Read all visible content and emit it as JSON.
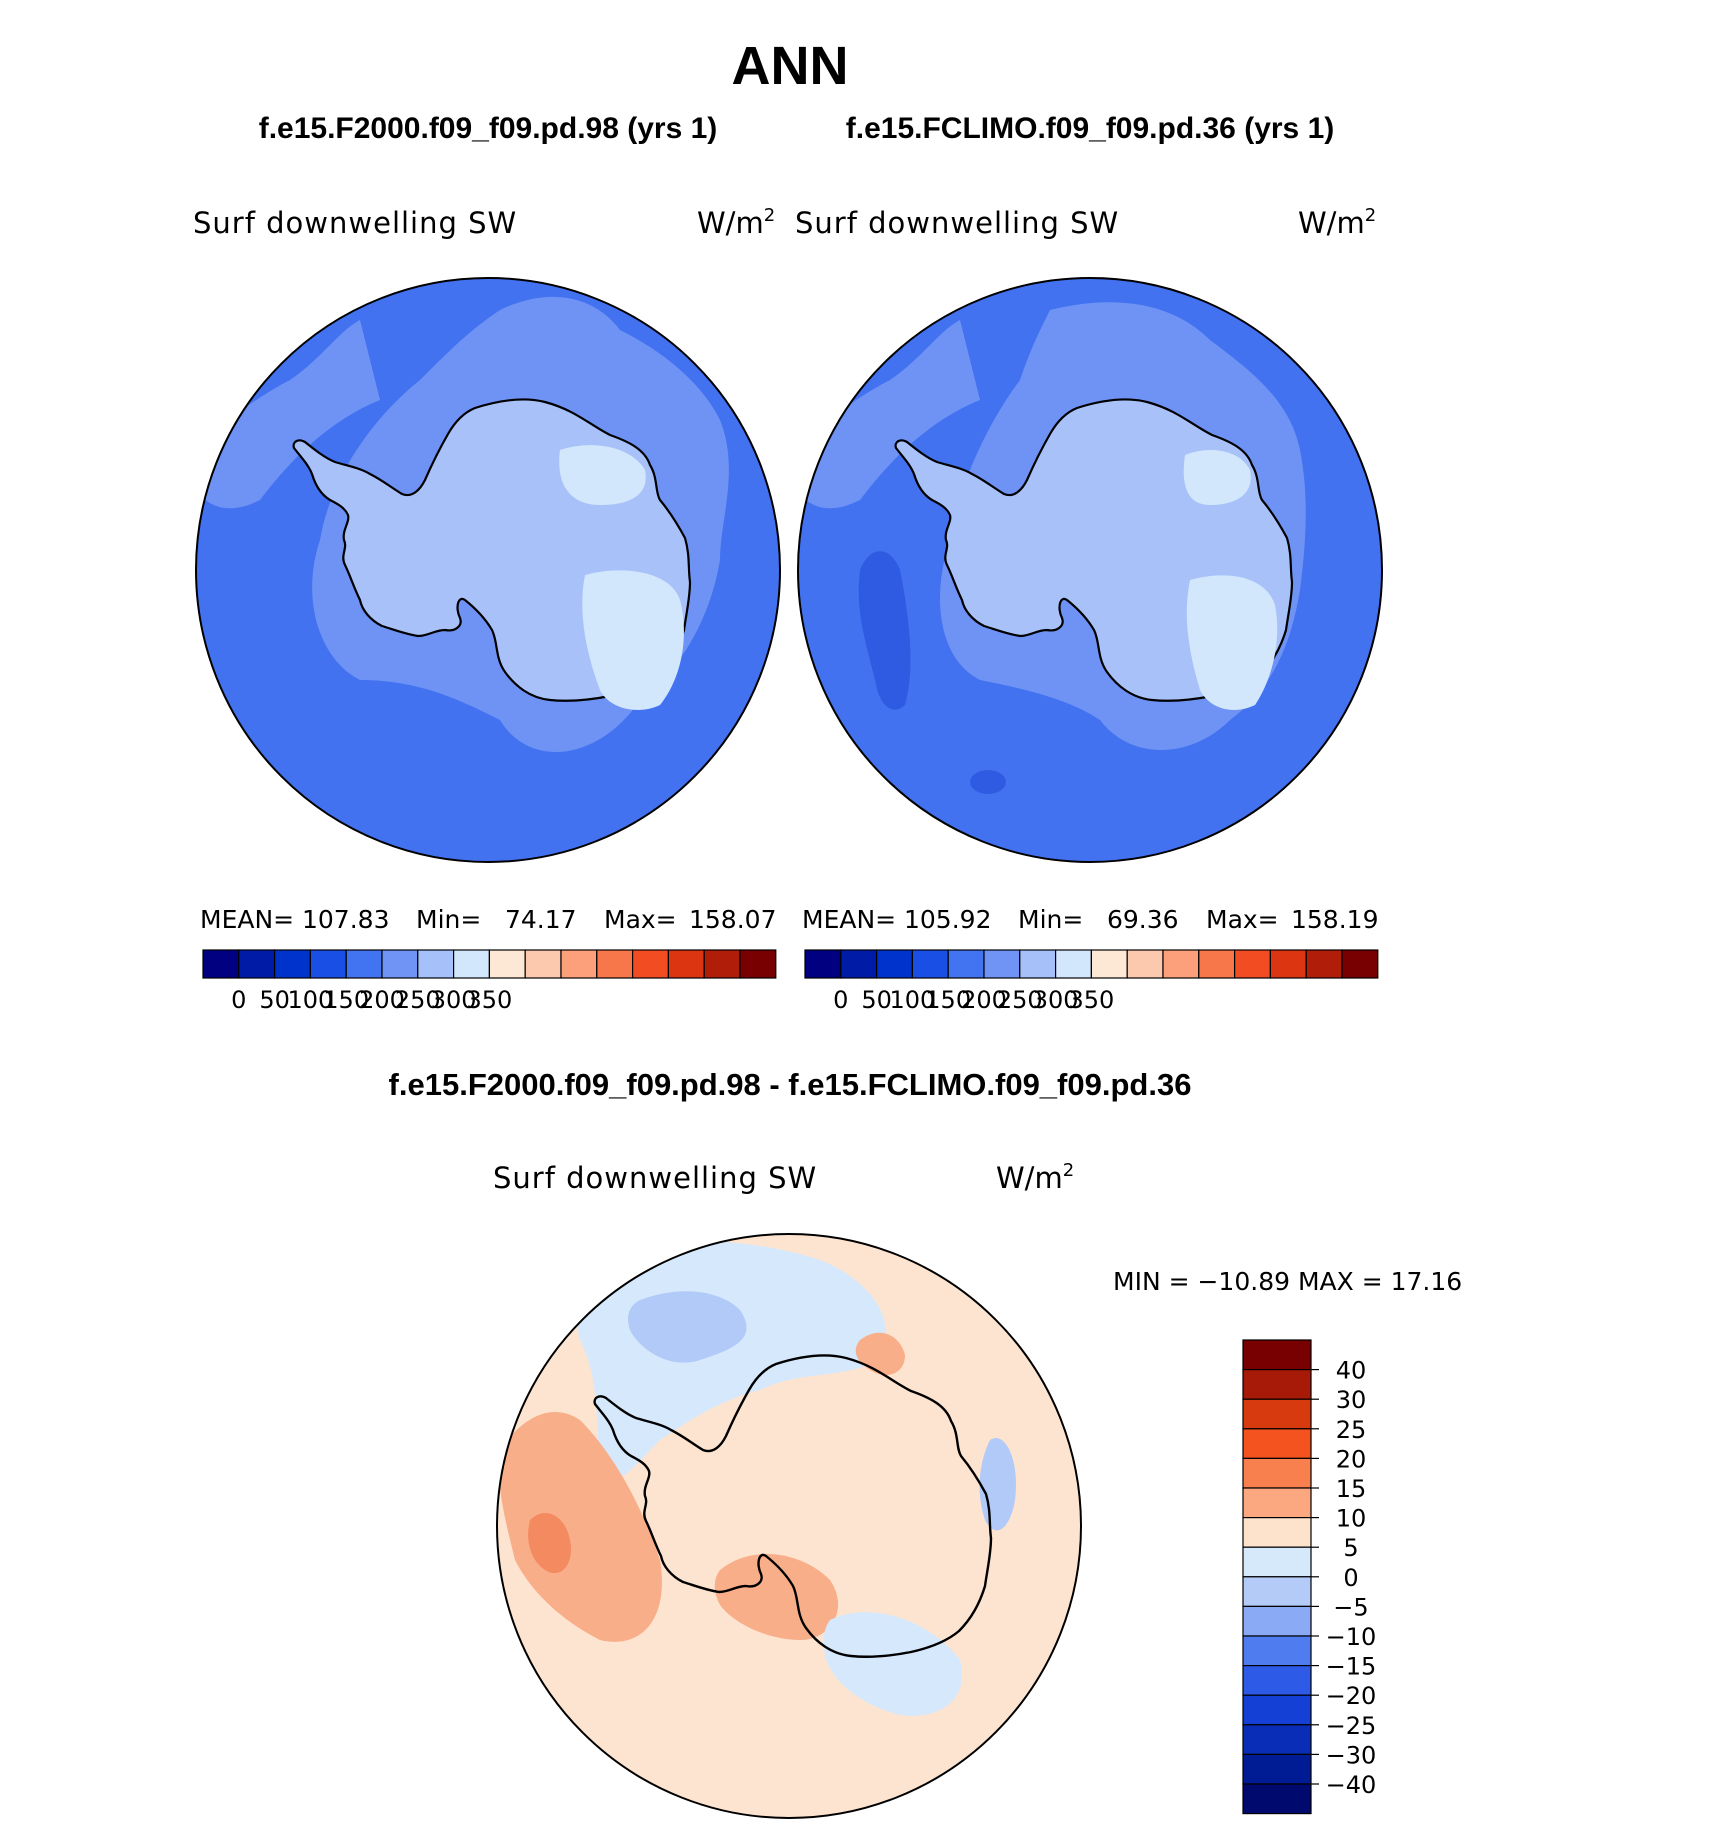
{
  "title": "ANN",
  "panels": [
    {
      "case_title": "f.e15.F2000.f09_f09.pd.98 (yrs 1)",
      "variable": "Surf downwelling SW",
      "units": "W/m",
      "units_sup": "2",
      "stats": {
        "mean_label": "MEAN=",
        "mean": "107.83",
        "min_label": "Min=",
        "min": "74.17",
        "max_label": "Max=",
        "max": "158.07"
      }
    },
    {
      "case_title": "f.e15.FCLIMO.f09_f09.pd.36 (yrs 1)",
      "variable": "Surf downwelling SW",
      "units": "W/m",
      "units_sup": "2",
      "stats": {
        "mean_label": "MEAN=",
        "mean": "105.92",
        "min_label": "Min=",
        "min": "69.36",
        "max_label": "Max=",
        "max": "158.19"
      }
    }
  ],
  "diff_panel": {
    "title": "f.e15.F2000.f09_f09.pd.98 - f.e15.FCLIMO.f09_f09.pd.36",
    "variable": "Surf downwelling SW",
    "units": "W/m",
    "units_sup": "2",
    "stats_text": "MIN = −10.89 MAX =  17.16"
  },
  "colorbar_abs": {
    "colors": [
      "#000080",
      "#001ba6",
      "#0033cc",
      "#1a4fe6",
      "#4273f0",
      "#7094f5",
      "#a6c0fa",
      "#d2e6fc",
      "#fde8d6",
      "#fcc9ae",
      "#fba07a",
      "#f8774a",
      "#f24c22",
      "#dc3512",
      "#b01e0a",
      "#780000"
    ],
    "tick_labels": [
      "0",
      "50",
      "100",
      "150",
      "200",
      "250",
      "300",
      "350"
    ]
  },
  "colorbar_diff": {
    "colors": [
      "#780000",
      "#a81a08",
      "#d83a10",
      "#f4521e",
      "#f8804e",
      "#fba881",
      "#fde2cc",
      "#d6e9fb",
      "#b4cbf8",
      "#8aaaf5",
      "#4f7cef",
      "#2d5be8",
      "#1440d6",
      "#0a2db8",
      "#001c94",
      "#000a6e"
    ],
    "tick_labels": [
      "40",
      "30",
      "25",
      "20",
      "15",
      "10",
      "5",
      "0",
      "−5",
      "−10",
      "−15",
      "−20",
      "−25",
      "−30",
      "−40"
    ]
  },
  "map_colors": {
    "ocean_deep": "#4272f0",
    "ocean_darker": "#2f5be2",
    "shelf": "#6e93f5",
    "ice_mid": "#a8c2f9",
    "ice_high": "#d2e6fc",
    "coast": "#000000",
    "diff_base": "#fde4d0",
    "diff_warm": "#f9ae8a",
    "diff_warmer": "#f48a60",
    "diff_cool": "#d6e8fc",
    "diff_cooler": "#b2caf8"
  }
}
